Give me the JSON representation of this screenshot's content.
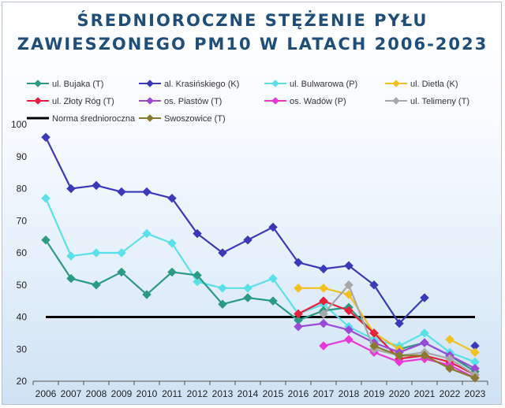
{
  "chart_data": {
    "type": "line",
    "title_line1": "ŚREDNIOROCZNE STĘŻENIE PYŁU",
    "title_line2": "ZAWIESZONEGO PM10 W LATACH 2006-2023",
    "ylim": [
      20,
      100
    ],
    "yticks": [
      20,
      30,
      40,
      50,
      60,
      70,
      80,
      90,
      100
    ],
    "grid": false,
    "legend_position": "top",
    "categories": [
      "2006",
      "2007",
      "2008",
      "2009",
      "2010",
      "2011",
      "2012",
      "2013",
      "2014",
      "2015",
      "2016",
      "2017",
      "2018",
      "2019",
      "2020",
      "2021",
      "2022",
      "2023"
    ],
    "series": [
      {
        "name": "ul. Bujaka (T)",
        "color": "#2a9a84",
        "marker": "diamond",
        "values": [
          64,
          52,
          50,
          54,
          47,
          54,
          53,
          44,
          46,
          45,
          39,
          42,
          43,
          35,
          30,
          32,
          28,
          23
        ]
      },
      {
        "name": "al. Krasińskiego (K)",
        "color": "#3a3ab8",
        "marker": "diamond",
        "values": [
          96,
          80,
          81,
          79,
          79,
          77,
          66,
          60,
          64,
          68,
          57,
          55,
          56,
          50,
          38,
          46,
          null,
          31
        ]
      },
      {
        "name": "ul. Bulwarowa (P)",
        "color": "#5ae0e8",
        "marker": "diamond",
        "values": [
          77,
          59,
          60,
          60,
          66,
          63,
          51,
          49,
          49,
          52,
          41,
          44,
          37,
          33,
          31,
          35,
          29,
          26
        ]
      },
      {
        "name": "ul. Dietla (K)",
        "color": "#f2c020",
        "marker": "diamond",
        "values": [
          null,
          null,
          null,
          null,
          null,
          null,
          null,
          null,
          null,
          null,
          49,
          49,
          47,
          35,
          30,
          null,
          33,
          29
        ]
      },
      {
        "name": "ul. Złoty Róg (T)",
        "color": "#e8203c",
        "marker": "diamond",
        "values": [
          null,
          null,
          null,
          null,
          null,
          null,
          null,
          null,
          null,
          null,
          41,
          45,
          42,
          35,
          27,
          28,
          26,
          22
        ]
      },
      {
        "name": "os. Piastów (T)",
        "color": "#9a4ad8",
        "marker": "diamond",
        "values": [
          null,
          null,
          null,
          null,
          null,
          null,
          null,
          null,
          null,
          null,
          37,
          38,
          36,
          32,
          29,
          32,
          28,
          24
        ]
      },
      {
        "name": "os. Wadów (P)",
        "color": "#e838d8",
        "marker": "diamond",
        "values": [
          null,
          null,
          null,
          null,
          null,
          null,
          null,
          null,
          null,
          null,
          null,
          31,
          33,
          29,
          26,
          27,
          25,
          21
        ]
      },
      {
        "name": "ul. Telimeny (T)",
        "color": "#a8a8a8",
        "marker": "diamond",
        "values": [
          null,
          null,
          null,
          null,
          null,
          null,
          null,
          null,
          null,
          null,
          null,
          41,
          50,
          30,
          28,
          29,
          27,
          22
        ]
      },
      {
        "name": "Norma średnioroczna",
        "color": "#000000",
        "marker": "none",
        "values": [
          40,
          40,
          40,
          40,
          40,
          40,
          40,
          40,
          40,
          40,
          40,
          40,
          40,
          40,
          40,
          40,
          40,
          40
        ]
      },
      {
        "name": "Swoszowice (T)",
        "color": "#8a7a30",
        "marker": "diamond",
        "values": [
          null,
          null,
          null,
          null,
          null,
          null,
          null,
          null,
          null,
          null,
          null,
          null,
          null,
          31,
          28,
          28,
          24,
          21
        ]
      }
    ]
  }
}
